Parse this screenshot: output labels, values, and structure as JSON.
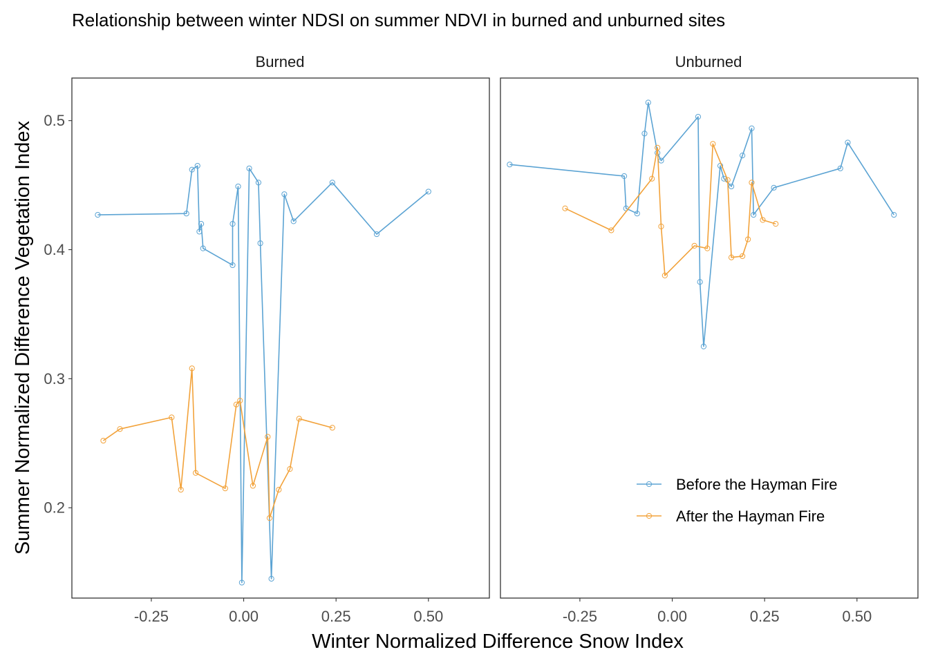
{
  "chart_data": {
    "type": "line",
    "title": "Relationship between winter NDSI on summer NDVI in burned and unburned sites",
    "xlabel": "Winter Normalized Difference Snow Index",
    "ylabel": "Summer Normalized Difference Vegetation Index",
    "x_ticks": [
      -0.25,
      0.0,
      0.25,
      0.5
    ],
    "x_tick_labels": [
      "-0.25",
      "0.00",
      "0.25",
      "0.50"
    ],
    "y_ticks": [
      0.2,
      0.3,
      0.4,
      0.5
    ],
    "y_tick_labels": [
      "0.2",
      "0.3",
      "0.4",
      "0.5"
    ],
    "xlim": [
      -0.465,
      0.665
    ],
    "ylim": [
      0.13,
      0.533
    ],
    "grid": false,
    "legend_position": "bottom-right of right panel",
    "series_styles": [
      {
        "name": "Before the Hayman Fire",
        "color": "#5ba3d3"
      },
      {
        "name": "After the Hayman Fire",
        "color": "#f2a23a"
      }
    ],
    "panels": [
      {
        "strip": "Burned",
        "series": [
          {
            "name": "Before the Hayman Fire",
            "points": [
              [
                -0.395,
                0.427
              ],
              [
                -0.155,
                0.428
              ],
              [
                -0.14,
                0.462
              ],
              [
                -0.125,
                0.465
              ],
              [
                -0.12,
                0.414
              ],
              [
                -0.115,
                0.42
              ],
              [
                -0.11,
                0.401
              ],
              [
                -0.03,
                0.388
              ],
              [
                -0.03,
                0.42
              ],
              [
                -0.015,
                0.449
              ],
              [
                -0.005,
                0.142
              ],
              [
                0.015,
                0.463
              ],
              [
                0.04,
                0.452
              ],
              [
                0.045,
                0.405
              ],
              [
                0.075,
                0.145
              ],
              [
                0.11,
                0.443
              ],
              [
                0.135,
                0.422
              ],
              [
                0.24,
                0.452
              ],
              [
                0.36,
                0.412
              ],
              [
                0.5,
                0.445
              ]
            ]
          },
          {
            "name": "After the Hayman Fire",
            "points": [
              [
                -0.38,
                0.252
              ],
              [
                -0.335,
                0.261
              ],
              [
                -0.195,
                0.27
              ],
              [
                -0.17,
                0.214
              ],
              [
                -0.14,
                0.308
              ],
              [
                -0.13,
                0.227
              ],
              [
                -0.05,
                0.215
              ],
              [
                -0.02,
                0.28
              ],
              [
                -0.01,
                0.283
              ],
              [
                0.025,
                0.217
              ],
              [
                0.065,
                0.255
              ],
              [
                0.07,
                0.192
              ],
              [
                0.095,
                0.214
              ],
              [
                0.125,
                0.23
              ],
              [
                0.15,
                0.269
              ],
              [
                0.24,
                0.262
              ]
            ]
          }
        ]
      },
      {
        "strip": "Unburned",
        "series": [
          {
            "name": "Before the Hayman Fire",
            "points": [
              [
                -0.44,
                0.466
              ],
              [
                -0.13,
                0.457
              ],
              [
                -0.125,
                0.432
              ],
              [
                -0.095,
                0.428
              ],
              [
                -0.075,
                0.49
              ],
              [
                -0.065,
                0.514
              ],
              [
                -0.04,
                0.475
              ],
              [
                -0.03,
                0.469
              ],
              [
                0.07,
                0.503
              ],
              [
                0.075,
                0.375
              ],
              [
                0.085,
                0.325
              ],
              [
                0.13,
                0.465
              ],
              [
                0.14,
                0.455
              ],
              [
                0.16,
                0.449
              ],
              [
                0.19,
                0.473
              ],
              [
                0.215,
                0.494
              ],
              [
                0.22,
                0.427
              ],
              [
                0.275,
                0.448
              ],
              [
                0.455,
                0.463
              ],
              [
                0.475,
                0.483
              ],
              [
                0.6,
                0.427
              ]
            ]
          },
          {
            "name": "After the Hayman Fire",
            "points": [
              [
                -0.29,
                0.432
              ],
              [
                -0.165,
                0.415
              ],
              [
                -0.055,
                0.455
              ],
              [
                -0.04,
                0.479
              ],
              [
                -0.03,
                0.418
              ],
              [
                -0.02,
                0.38
              ],
              [
                0.06,
                0.403
              ],
              [
                0.095,
                0.401
              ],
              [
                0.11,
                0.482
              ],
              [
                0.15,
                0.454
              ],
              [
                0.16,
                0.394
              ],
              [
                0.19,
                0.395
              ],
              [
                0.205,
                0.408
              ],
              [
                0.215,
                0.452
              ],
              [
                0.245,
                0.423
              ],
              [
                0.28,
                0.42
              ]
            ]
          }
        ]
      }
    ]
  }
}
